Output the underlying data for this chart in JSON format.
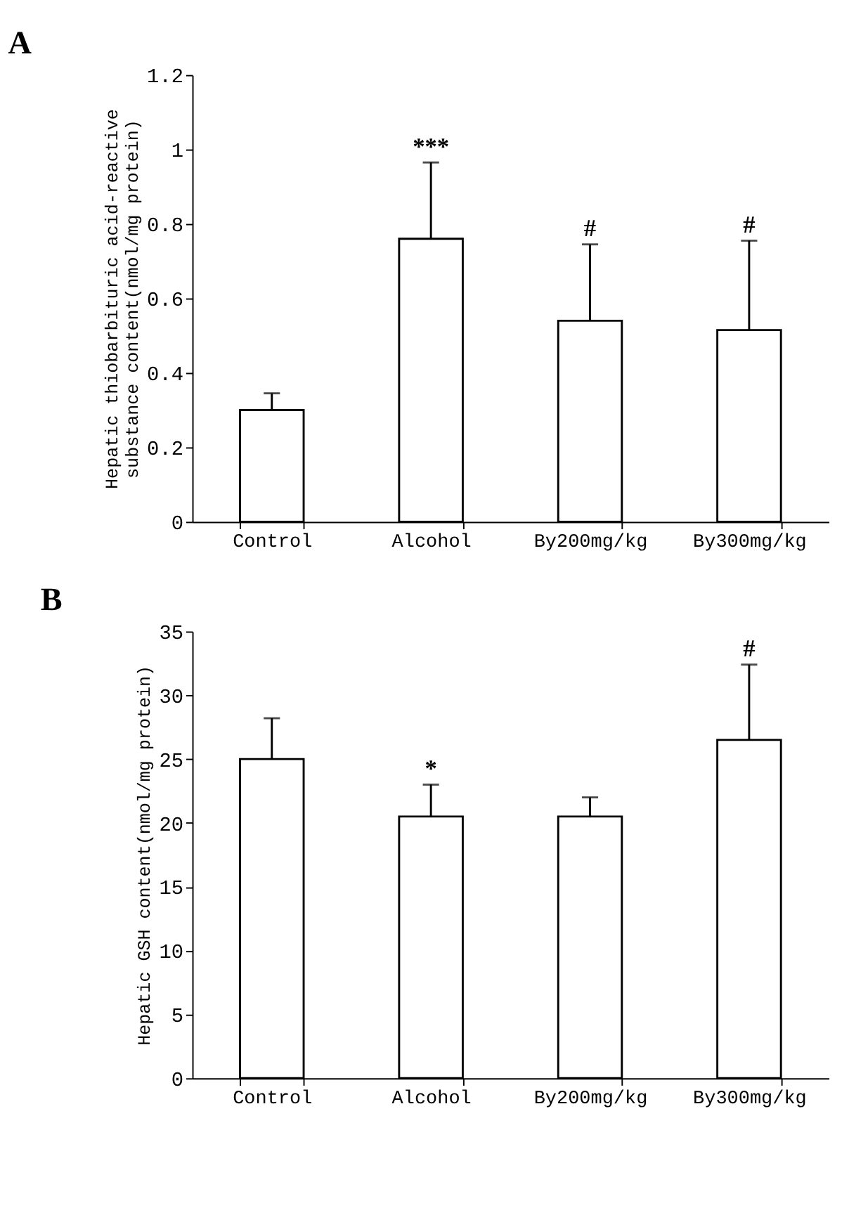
{
  "chart_data": [
    {
      "type": "bar",
      "title": "A",
      "ylabel": "Hepatic thiobarbituric acid-reactive\nsubstance content(nmol/mg protein)",
      "categories": [
        "Control",
        "Alcohol",
        "By200mg/kg",
        "By300mg/kg"
      ],
      "series": [
        {
          "color": "#ffffff",
          "values": [
            0.3,
            0.76,
            0.54,
            0.515
          ],
          "errors": [
            0.045,
            0.205,
            0.205,
            0.24
          ]
        }
      ],
      "ylim": [
        0,
        1.2
      ],
      "yticks": [
        0,
        0.2,
        0.4,
        0.6,
        0.8,
        1,
        1.2
      ],
      "annotations": [
        {
          "text": "***",
          "x": "Alcohol",
          "y": 0.965
        },
        {
          "text": "#",
          "x": "By200mg/kg",
          "y": 0.745
        },
        {
          "text": "#",
          "x": "By300mg/kg",
          "y": 0.755
        }
      ]
    },
    {
      "type": "bar",
      "title": "B",
      "ylabel": "Hepatic GSH content(nmol/mg protein)",
      "categories": [
        "Control",
        "Alcohol",
        "By200mg/kg",
        "By300mg/kg"
      ],
      "series": [
        {
          "color": "#ffffff",
          "values": [
            25,
            20.5,
            20.5,
            26.5
          ],
          "errors": [
            3.2,
            2.5,
            1.5,
            5.9
          ]
        }
      ],
      "ylim": [
        0,
        35
      ],
      "yticks": [
        0,
        5,
        10,
        15,
        20,
        25,
        30,
        35
      ],
      "annotations": [
        {
          "text": "*",
          "x": "Alcohol",
          "y": 23
        },
        {
          "text": "#",
          "x": "By300mg/kg",
          "y": 32.4
        }
      ]
    }
  ]
}
